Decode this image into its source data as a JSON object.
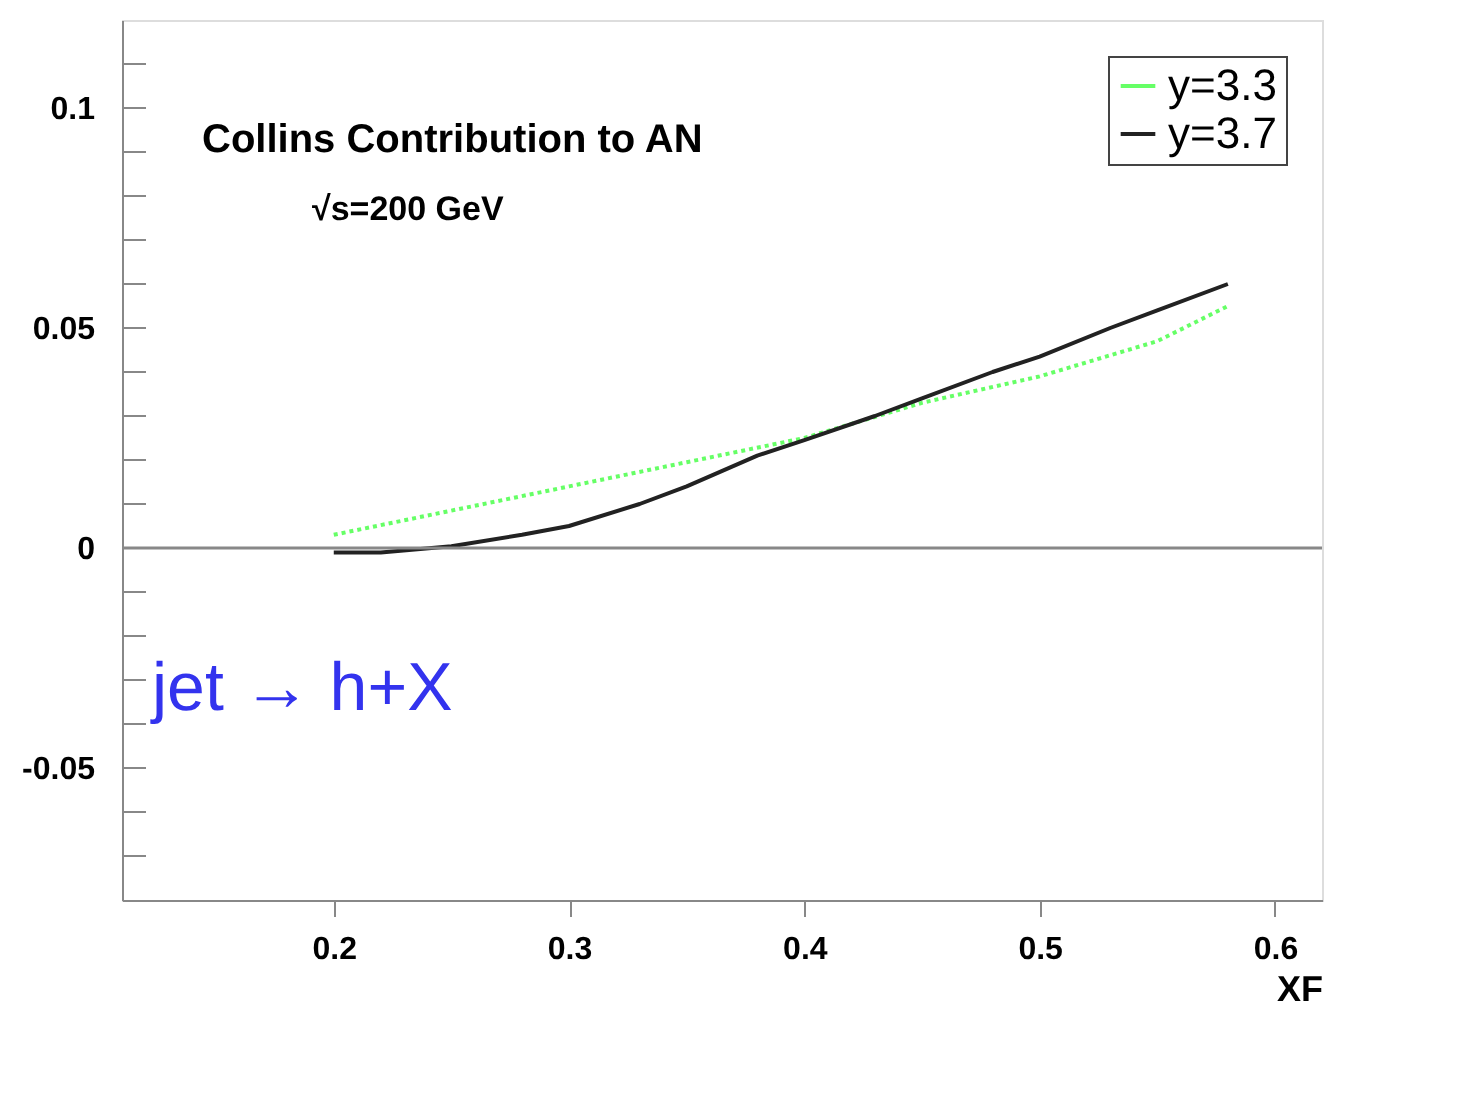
{
  "chart_data": {
    "type": "line",
    "xlabel": "XF",
    "x": [
      0.2,
      0.22,
      0.25,
      0.28,
      0.3,
      0.33,
      0.35,
      0.38,
      0.4,
      0.43,
      0.45,
      0.48,
      0.5,
      0.53,
      0.55,
      0.58
    ],
    "series": [
      {
        "name": "y=3.3",
        "color": "#66ff66",
        "line_style": "dotted",
        "x": [
          0.2,
          0.25,
          0.3,
          0.35,
          0.4,
          0.45,
          0.5,
          0.55,
          0.58
        ],
        "values": [
          0.003,
          0.0085,
          0.014,
          0.0195,
          0.025,
          0.033,
          0.039,
          0.047,
          0.055
        ]
      },
      {
        "name": "y=3.7",
        "color": "#222222",
        "line_style": "solid",
        "values": [
          -0.001,
          -0.001,
          0.0004,
          0.003,
          0.005,
          0.01,
          0.014,
          0.021,
          0.0245,
          0.03,
          0.034,
          0.04,
          0.0435,
          0.05,
          0.054,
          0.06
        ]
      }
    ],
    "xlim": [
      0.11,
      0.62
    ],
    "xticks": [
      0.2,
      0.3,
      0.4,
      0.5,
      0.6
    ],
    "ylim": [
      -0.08,
      0.12
    ],
    "yticks": [
      {
        "value": -0.07,
        "label": null
      },
      {
        "value": -0.06,
        "label": null
      },
      -0.05,
      {
        "value": -0.04,
        "label": null
      },
      {
        "value": -0.03,
        "label": null
      },
      {
        "value": -0.02,
        "label": null
      },
      {
        "value": -0.01,
        "label": null
      },
      0,
      {
        "value": 0.01,
        "label": null
      },
      {
        "value": 0.02,
        "label": null
      },
      {
        "value": 0.03,
        "label": null
      },
      {
        "value": 0.04,
        "label": null
      },
      0.05,
      {
        "value": 0.06,
        "label": null
      },
      {
        "value": 0.07,
        "label": null
      },
      {
        "value": 0.08,
        "label": null
      },
      {
        "value": 0.09,
        "label": null
      },
      0.1,
      {
        "value": 0.11,
        "label": null
      }
    ],
    "ref_lines": [
      {
        "axis": "y",
        "value": 0,
        "color": "#888888"
      }
    ],
    "annotations": [
      "Collins Contribution to AN",
      "√s=200 GeV",
      "jet → h+X"
    ],
    "legend": "top right",
    "grid": false,
    "marker": "none"
  }
}
